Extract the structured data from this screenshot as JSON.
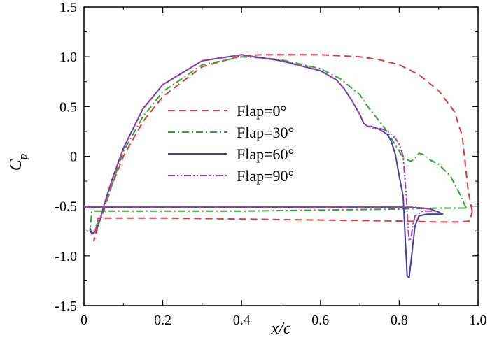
{
  "chart_data": {
    "type": "line",
    "title": "",
    "xlabel": "x/c",
    "ylabel_main": "C",
    "ylabel_sub": "p",
    "xlim": [
      0.0,
      1.0
    ],
    "ylim": [
      -1.5,
      1.5
    ],
    "x_ticks": [
      0.0,
      0.2,
      0.4,
      0.6,
      0.8,
      1.0
    ],
    "x_tick_labels": [
      "0",
      "0.2",
      "0.4",
      "0.6",
      "0.8",
      "1.0"
    ],
    "y_ticks": [
      -1.5,
      -1.0,
      -0.5,
      0.0,
      0.5,
      1.0,
      1.5
    ],
    "y_tick_labels": [
      "-1.5",
      "-1.0",
      "-0.5",
      "0",
      "0.5",
      "1.0",
      "1.5"
    ],
    "grid": false,
    "legend_position": "center",
    "series": [
      {
        "name": "Flap=0°",
        "color": "#e03c3c",
        "style": "dashed",
        "x": [
          0.985,
          0.975,
          0.96,
          0.94,
          0.9,
          0.85,
          0.8,
          0.75,
          0.7,
          0.6,
          0.5,
          0.45,
          0.4,
          0.3,
          0.2,
          0.15,
          0.1,
          0.07,
          0.05,
          0.035,
          0.03,
          0.025,
          0.035,
          0.05,
          0.1,
          0.2,
          0.4,
          0.6,
          0.8,
          0.9,
          0.95,
          0.98,
          0.985
        ],
        "y": [
          -0.55,
          -0.35,
          0.2,
          0.45,
          0.66,
          0.82,
          0.92,
          0.97,
          1.0,
          1.02,
          1.02,
          1.02,
          1.01,
          0.9,
          0.6,
          0.35,
          0.0,
          -0.3,
          -0.55,
          -0.7,
          -0.8,
          -0.85,
          -0.62,
          -0.62,
          -0.62,
          -0.62,
          -0.63,
          -0.64,
          -0.65,
          -0.66,
          -0.66,
          -0.65,
          -0.55
        ]
      },
      {
        "name": "Flap=30°",
        "color": "#2eaa2e",
        "style": "dashdot",
        "x": [
          0.97,
          0.95,
          0.93,
          0.9,
          0.88,
          0.86,
          0.85,
          0.84,
          0.83,
          0.81,
          0.8,
          0.78,
          0.76,
          0.74,
          0.72,
          0.7,
          0.65,
          0.6,
          0.5,
          0.45,
          0.4,
          0.3,
          0.2,
          0.15,
          0.1,
          0.07,
          0.05,
          0.03,
          0.02,
          0.015,
          0.02,
          0.05,
          0.1,
          0.2,
          0.4,
          0.6,
          0.8,
          0.9,
          0.95,
          0.97
        ],
        "y": [
          -0.52,
          -0.35,
          -0.2,
          -0.08,
          -0.04,
          0.02,
          0.03,
          -0.02,
          -0.05,
          -0.02,
          0.05,
          0.18,
          0.3,
          0.4,
          0.5,
          0.62,
          0.78,
          0.88,
          0.97,
          0.99,
          1.0,
          0.92,
          0.65,
          0.4,
          0.05,
          -0.3,
          -0.55,
          -0.7,
          -0.78,
          -0.75,
          -0.55,
          -0.55,
          -0.55,
          -0.55,
          -0.55,
          -0.54,
          -0.53,
          -0.52,
          -0.52,
          -0.52
        ]
      },
      {
        "name": "Flap=60°",
        "color": "#4a3fb0",
        "style": "solid",
        "x": [
          0.0,
          0.1,
          0.2,
          0.4,
          0.6,
          0.8,
          0.86,
          0.88,
          0.9,
          0.91,
          0.9,
          0.87,
          0.85,
          0.84,
          0.83,
          0.825,
          0.82,
          0.815,
          0.81,
          0.8,
          0.79,
          0.78,
          0.77,
          0.75,
          0.73,
          0.72,
          0.71,
          0.7,
          0.68,
          0.66,
          0.64,
          0.6,
          0.5,
          0.45,
          0.4,
          0.3,
          0.2,
          0.15,
          0.1,
          0.07,
          0.05,
          0.04,
          0.03,
          0.02,
          0.015
        ],
        "y": [
          -0.51,
          -0.51,
          -0.51,
          -0.51,
          -0.51,
          -0.51,
          -0.52,
          -0.53,
          -0.56,
          -0.58,
          -0.58,
          -0.58,
          -0.6,
          -0.7,
          -1.05,
          -1.22,
          -1.2,
          -0.8,
          -0.4,
          -0.2,
          0.02,
          0.15,
          0.22,
          0.27,
          0.3,
          0.3,
          0.33,
          0.42,
          0.56,
          0.68,
          0.77,
          0.86,
          0.96,
          0.99,
          1.02,
          0.96,
          0.72,
          0.48,
          0.08,
          -0.25,
          -0.5,
          -0.65,
          -0.75,
          -0.78,
          -0.72
        ]
      },
      {
        "name": "Flap=90°",
        "color": "#b03ab0",
        "style": "dashdotdot",
        "x": [
          0.0,
          0.1,
          0.2,
          0.4,
          0.6,
          0.8,
          0.84,
          0.86,
          0.88,
          0.89,
          0.88,
          0.86,
          0.84,
          0.835,
          0.83,
          0.825,
          0.822,
          0.818,
          0.81,
          0.8,
          0.79,
          0.78,
          0.77,
          0.76,
          0.75,
          0.74,
          0.73,
          0.72,
          0.71,
          0.7,
          0.68,
          0.66,
          0.64,
          0.6,
          0.5,
          0.45,
          0.4,
          0.3,
          0.2,
          0.15,
          0.1,
          0.07,
          0.05,
          0.04,
          0.03,
          0.02,
          0.015
        ],
        "y": [
          -0.51,
          -0.51,
          -0.51,
          -0.51,
          -0.51,
          -0.51,
          -0.51,
          -0.52,
          -0.53,
          -0.55,
          -0.55,
          -0.55,
          -0.6,
          -0.68,
          -0.82,
          -0.85,
          -0.7,
          -0.4,
          0.0,
          0.12,
          0.18,
          0.22,
          0.25,
          0.27,
          0.28,
          0.28,
          0.29,
          0.3,
          0.33,
          0.42,
          0.56,
          0.68,
          0.77,
          0.86,
          0.96,
          0.99,
          1.02,
          0.96,
          0.72,
          0.48,
          0.08,
          -0.25,
          -0.5,
          -0.65,
          -0.75,
          -0.78,
          -0.72
        ]
      }
    ]
  }
}
